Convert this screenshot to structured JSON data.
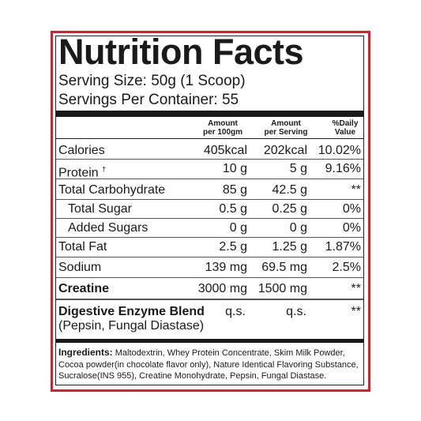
{
  "header": {
    "title": "Nutrition Facts",
    "serving_size": "Serving Size: 50g (1 Scoop)",
    "servings_per_container": "Servings Per Container: 55"
  },
  "table": {
    "columns": [
      "Amount\nper 100gm",
      "Amount\nper Serving",
      "%Daily\nValue"
    ],
    "rows": [
      [
        "Calories",
        "405kcal",
        "202kcal",
        "10.02%"
      ],
      [
        "Protein",
        "10 g",
        "5 g",
        "9.16%"
      ],
      [
        "Total Carbohydrate",
        "85 g",
        "42.5 g",
        "**"
      ],
      [
        "Total Sugar",
        "0.5 g",
        "0.25 g",
        "0%"
      ],
      [
        "Added Sugars",
        "0 g",
        "0 g",
        "0%"
      ],
      [
        "Total Fat",
        "2.5 g",
        "1.25 g",
        "1.87%"
      ],
      [
        "Sodium",
        "139 mg",
        "69.5 mg",
        "2.5%"
      ],
      [
        "Creatine",
        "3000 mg",
        "1500 mg",
        "**"
      ],
      [
        "Digestive Enzyme Blend",
        "q.s.",
        "q.s.",
        "**"
      ]
    ],
    "protein_mark": "†",
    "enzyme_note": "(Pepsin, Fungal Diastase)"
  },
  "ingredients": {
    "label": "Ingredients:",
    "lines": [
      " Maltodextrin, Whey Protein Concentrate, Skim Milk Powder,",
      "Cocoa powder(in chocolate flavor only), Nature Identical Flavoring Substance,",
      "Sucralose(INS 955), Creatine Monohydrate, Pepsin, Fungal Diastase."
    ]
  }
}
